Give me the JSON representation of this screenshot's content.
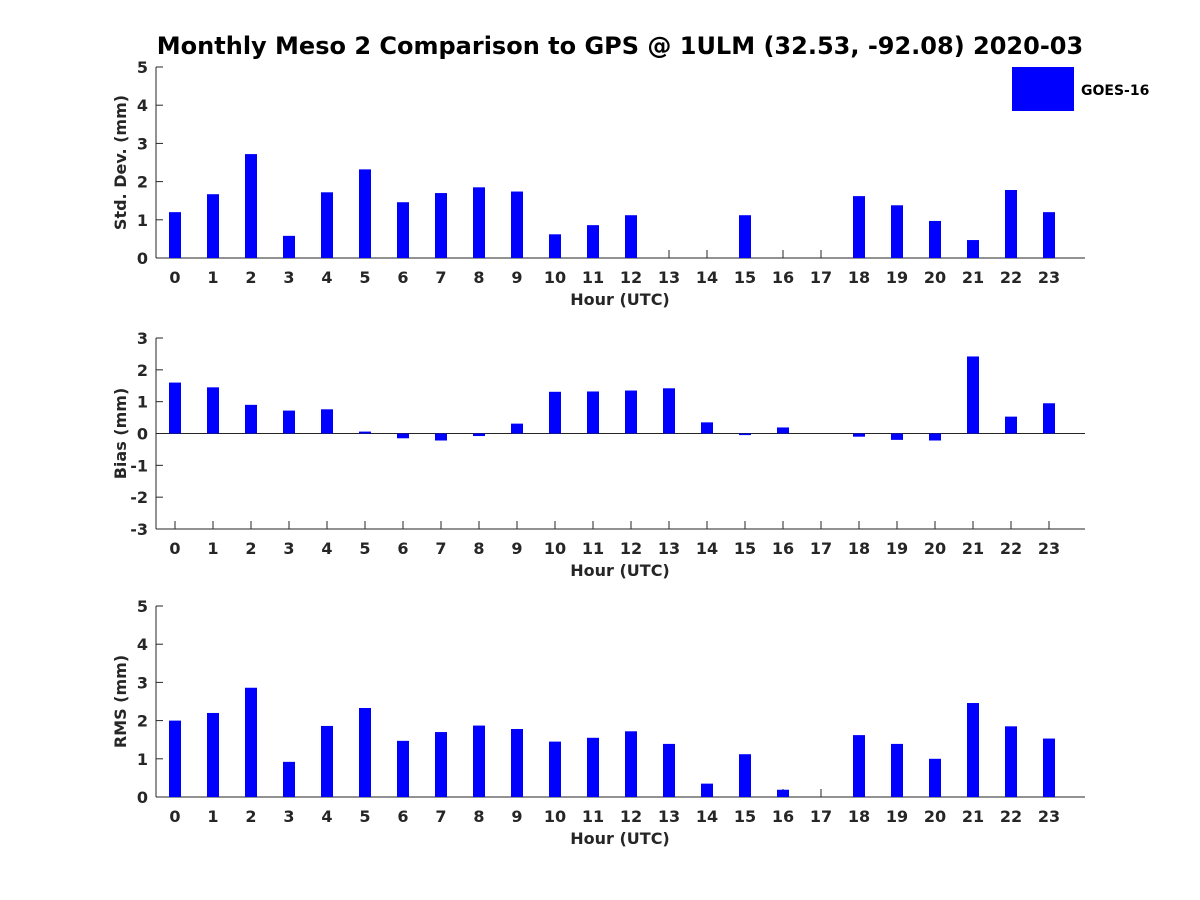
{
  "chart_data": {
    "title": "Monthly Meso 2 Comparison to GPS @ 1ULM (32.53, -92.08) 2020-03",
    "type": "bar",
    "color": "#0000ff",
    "legend": {
      "label": "GOES-16",
      "placement": "top-right"
    },
    "categories": [
      "0",
      "1",
      "2",
      "3",
      "4",
      "5",
      "6",
      "7",
      "8",
      "9",
      "10",
      "11",
      "12",
      "13",
      "14",
      "15",
      "16",
      "17",
      "18",
      "19",
      "20",
      "21",
      "22",
      "23"
    ],
    "panels": [
      {
        "id": "std",
        "ylabel": "Std. Dev. (mm)",
        "xlabel": "Hour (UTC)",
        "ylim": [
          0,
          5
        ],
        "yticks": [
          0,
          1,
          2,
          3,
          4,
          5
        ],
        "values": [
          1.2,
          1.67,
          2.72,
          0.58,
          1.72,
          2.32,
          1.46,
          1.7,
          1.85,
          1.74,
          0.62,
          0.86,
          1.12,
          0,
          0,
          1.12,
          0,
          0,
          1.62,
          1.38,
          0.97,
          0.47,
          1.78,
          1.2
        ]
      },
      {
        "id": "bias",
        "ylabel": "Bias (mm)",
        "xlabel": "Hour (UTC)",
        "ylim": [
          -3,
          3
        ],
        "yticks": [
          -3,
          -2,
          -1,
          0,
          1,
          2,
          3
        ],
        "values": [
          1.6,
          1.45,
          0.9,
          0.72,
          0.76,
          0.06,
          -0.15,
          -0.22,
          -0.08,
          0.31,
          1.31,
          1.32,
          1.35,
          1.42,
          0.35,
          -0.05,
          0.19,
          0,
          -0.1,
          -0.2,
          -0.22,
          2.42,
          0.53,
          0.95
        ]
      },
      {
        "id": "rms",
        "ylabel": "RMS (mm)",
        "xlabel": "Hour (UTC)",
        "ylim": [
          0,
          5
        ],
        "yticks": [
          0,
          1,
          2,
          3,
          4,
          5
        ],
        "values": [
          2.0,
          2.2,
          2.86,
          0.92,
          1.86,
          2.33,
          1.47,
          1.7,
          1.87,
          1.78,
          1.45,
          1.55,
          1.72,
          1.39,
          0.35,
          1.12,
          0.19,
          0,
          1.62,
          1.39,
          1.0,
          2.46,
          1.85,
          1.53
        ]
      }
    ]
  }
}
